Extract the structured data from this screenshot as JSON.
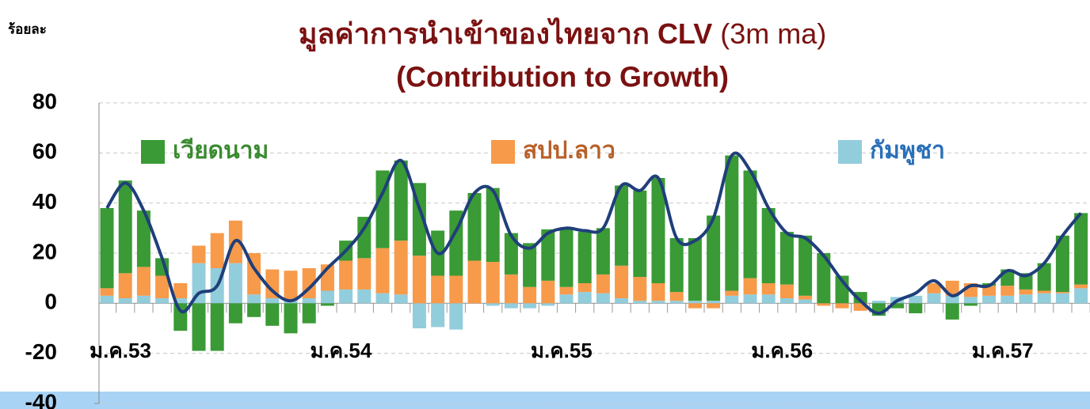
{
  "chart_data": {
    "type": "bar",
    "stacked": true,
    "unit_label": "ร้อยละ",
    "title": "มูลค่าการนำเข้าของไทยจาก CLV",
    "title_suffix": "(3m ma)",
    "subtitle": "(Contribution to Growth)",
    "title_color": "#7b1111",
    "categories": [
      "ม.ค.53",
      null,
      null,
      null,
      null,
      null,
      null,
      null,
      null,
      null,
      null,
      null,
      "ม.ค.54",
      null,
      null,
      null,
      null,
      null,
      null,
      null,
      null,
      null,
      null,
      null,
      "ม.ค.55",
      null,
      null,
      null,
      null,
      null,
      null,
      null,
      null,
      null,
      null,
      null,
      "ม.ค.56",
      null,
      null,
      null,
      null,
      null,
      null,
      null,
      null,
      null,
      null,
      null,
      "ม.ค.57",
      null,
      null,
      null,
      null,
      null
    ],
    "ylim": [
      -40,
      80
    ],
    "yticks": [
      -40,
      -20,
      0,
      20,
      40,
      60,
      80
    ],
    "grid": true,
    "series": [
      {
        "name": "กัมพูชา",
        "color": "#92cddc",
        "label_color": "#2a6fb8",
        "values": [
          3,
          2,
          3,
          2,
          2,
          16,
          14,
          16,
          3.5,
          2,
          1,
          2,
          5,
          5.5,
          5.5,
          4,
          3.5,
          -10,
          -9.5,
          -10.5,
          0,
          -1,
          -2,
          -2,
          -1,
          3.5,
          4.5,
          4,
          2,
          1,
          1,
          1,
          1,
          1,
          3,
          3.5,
          3.5,
          2,
          1.5,
          0,
          0,
          0,
          1,
          2.5,
          3,
          4,
          3,
          2.5,
          3,
          3,
          3.5,
          4,
          4,
          6
        ]
      },
      {
        "name": "สปป.ลาว",
        "color": "#f79a4a",
        "label_color": "#b8602a",
        "values": [
          3,
          10,
          11.5,
          9,
          6,
          7,
          14,
          17,
          16.5,
          11.5,
          12,
          12,
          10.5,
          11.5,
          12.5,
          18,
          21.5,
          19,
          11,
          11,
          17,
          16.5,
          11.5,
          6.5,
          9,
          3,
          3.5,
          7.5,
          13,
          9.5,
          7,
          3.5,
          -2,
          -2,
          2,
          6.5,
          4.5,
          5.5,
          1.5,
          -1,
          -2,
          -3,
          0,
          0,
          0,
          4,
          6,
          5.5,
          4,
          4,
          2,
          1,
          0.5,
          1.5
        ]
      },
      {
        "name": "เวียดนาม",
        "color": "#3a9a35",
        "label_color": "#3a8a30",
        "values": [
          32,
          37,
          22.5,
          7,
          -11,
          -19,
          -19,
          -8,
          -5.5,
          -9,
          -12,
          -8,
          -1,
          8,
          16.5,
          31,
          32,
          29,
          18,
          26,
          27,
          29.5,
          16.5,
          17.5,
          20.5,
          23,
          20.5,
          18.5,
          32,
          34.5,
          42,
          21.5,
          25,
          34,
          54,
          43,
          30,
          21,
          24,
          20,
          11,
          4.5,
          -5,
          -2,
          -4,
          0,
          -6.5,
          -1,
          1,
          6.5,
          6.5,
          11,
          22.5,
          28.5
        ]
      },
      {
        "type": "line",
        "color": "#1f3f7a",
        "values": [
          38,
          48,
          37,
          18,
          -3,
          4,
          7,
          25,
          14,
          5,
          1,
          6,
          14,
          21,
          30,
          44,
          57,
          38,
          20,
          29,
          44,
          45,
          27,
          22,
          28,
          30,
          29,
          30,
          47,
          45,
          50,
          26,
          25,
          34,
          59,
          53,
          38,
          28,
          26,
          19,
          9,
          1,
          -4,
          1,
          4,
          9,
          3,
          7,
          7,
          13,
          11,
          16,
          27,
          36
        ]
      }
    ]
  }
}
